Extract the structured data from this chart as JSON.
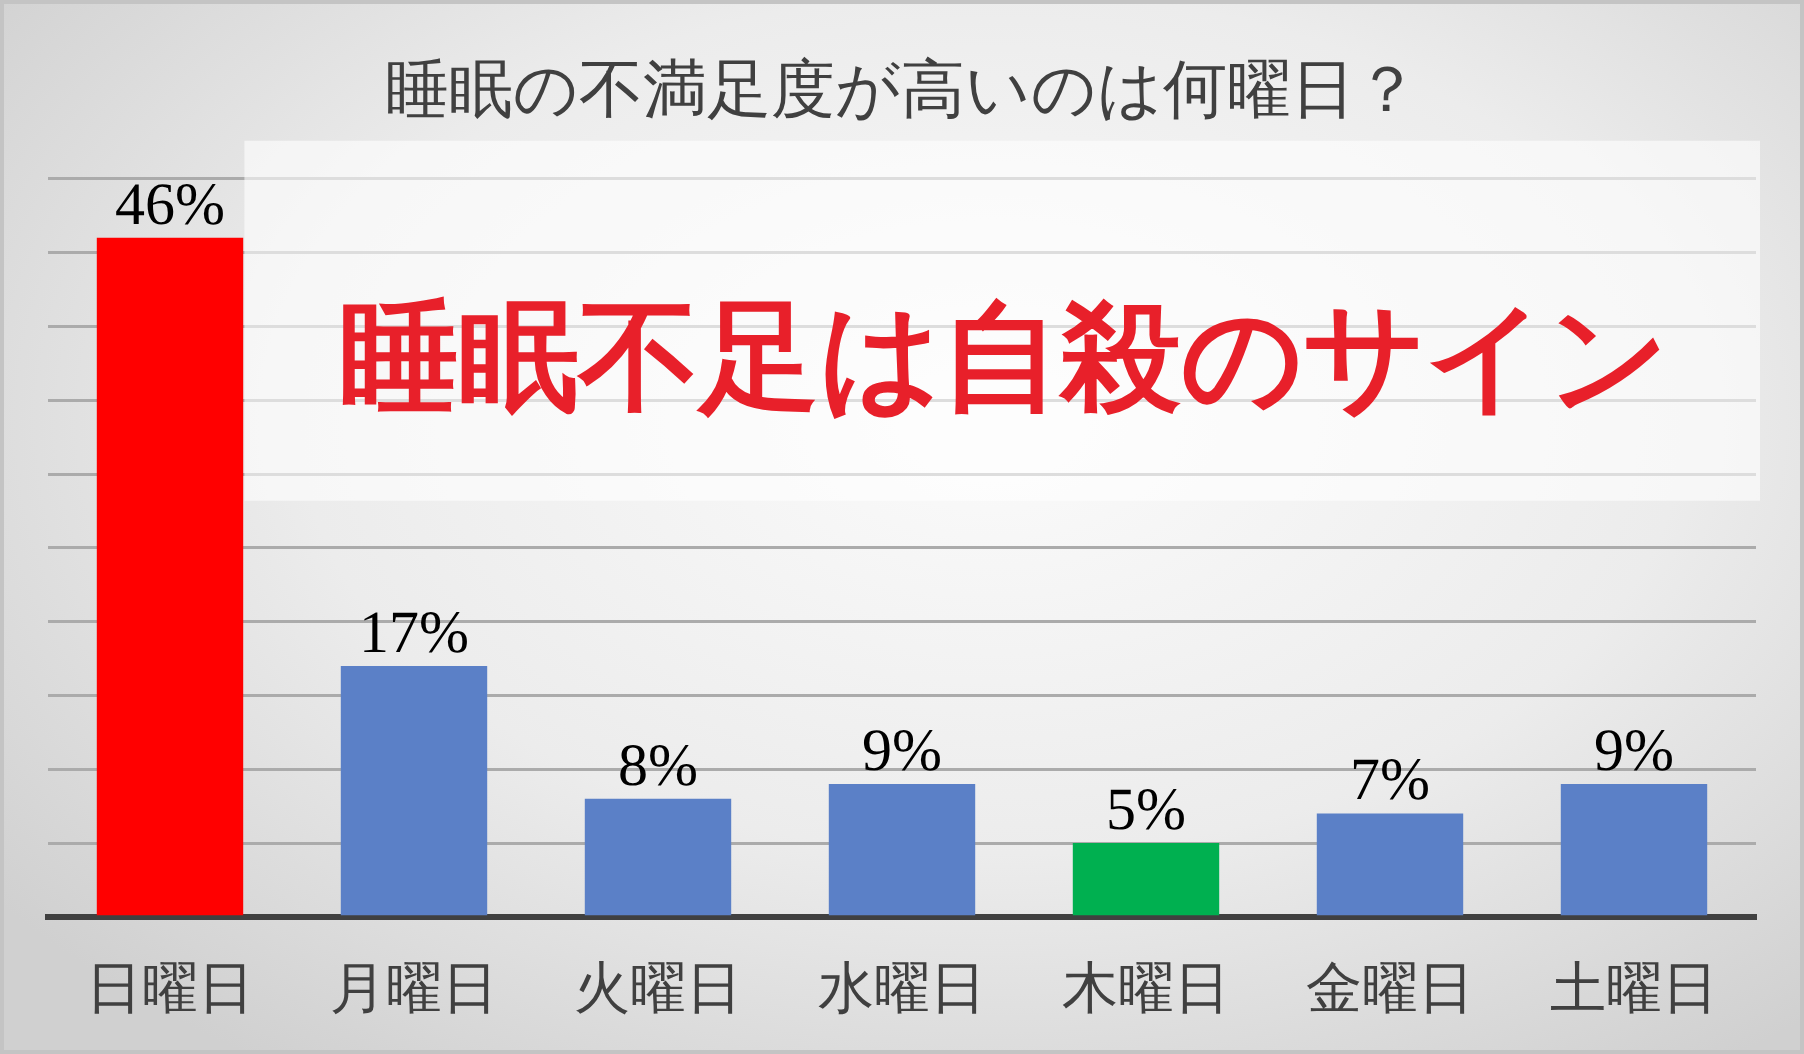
{
  "chart_data": {
    "type": "bar",
    "title": "睡眠の不満足度が高いのは何曜日？",
    "categories": [
      "日曜日",
      "月曜日",
      "火曜日",
      "水曜日",
      "木曜日",
      "金曜日",
      "土曜日"
    ],
    "values": [
      46,
      17,
      8,
      9,
      5,
      7,
      9
    ],
    "colors": [
      "#ff0000",
      "#5b80c7",
      "#5b80c7",
      "#5b80c7",
      "#00b050",
      "#5b80c7",
      "#5b80c7"
    ],
    "value_labels": [
      "46%",
      "17%",
      "8%",
      "9%",
      "5%",
      "7%",
      "9%"
    ],
    "ylim": [
      0,
      50
    ],
    "yticks": [
      {
        "value": 0,
        "label": null
      },
      {
        "value": 5,
        "label": null
      },
      {
        "value": 10,
        "label": null
      },
      {
        "value": 15,
        "label": null
      },
      {
        "value": 20,
        "label": null
      },
      {
        "value": 25,
        "label": null
      },
      {
        "value": 30,
        "label": null
      },
      {
        "value": 35,
        "label": null
      },
      {
        "value": 40,
        "label": null
      },
      {
        "value": 45,
        "label": null
      },
      {
        "value": 50,
        "label": null
      }
    ],
    "tick_labels": "x",
    "grid": "y",
    "annotations": [
      "睡眠不足は自殺のサイン"
    ]
  }
}
